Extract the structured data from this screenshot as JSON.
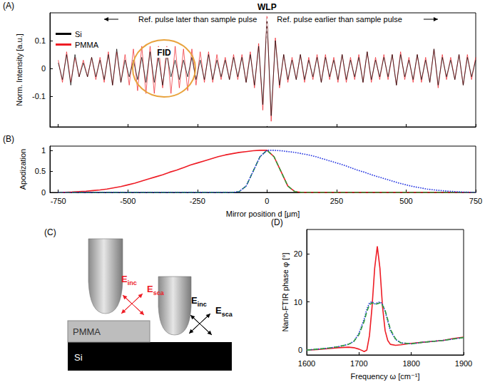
{
  "chart_data": [
    {
      "type": "line",
      "title": "(A)",
      "x": [
        -750,
        -735,
        -720,
        -705,
        -690,
        -675,
        -660,
        -645,
        -630,
        -615,
        -600,
        -585,
        -570,
        -555,
        -540,
        -525,
        -510,
        -495,
        -480,
        -465,
        -450,
        -435,
        -420,
        -405,
        -390,
        -375,
        -360,
        -345,
        -330,
        -315,
        -300,
        -285,
        -270,
        -255,
        -240,
        -225,
        -210,
        -195,
        -180,
        -165,
        -150,
        -135,
        -120,
        -105,
        -90,
        -75,
        -60,
        -45,
        -30,
        -15,
        0,
        15,
        30,
        45,
        60,
        75,
        90,
        105,
        120,
        135,
        150,
        165,
        180,
        195,
        210,
        225,
        240,
        255,
        270,
        285,
        300,
        315,
        330,
        345,
        360,
        375,
        390,
        405,
        420,
        435,
        450,
        465,
        480,
        495,
        510,
        525,
        540,
        555,
        570,
        585,
        600,
        615,
        630,
        645,
        660,
        675,
        690,
        705,
        720,
        735,
        750
      ],
      "series": [
        {
          "name": "Si",
          "color": "#000000",
          "line_style": "solid",
          "values": [
            0.02,
            -0.04,
            0.05,
            -0.06,
            0.05,
            -0.03,
            0.02,
            -0.03,
            0.04,
            -0.03,
            0.03,
            -0.04,
            0.05,
            -0.06,
            0.07,
            -0.05,
            0.03,
            -0.03,
            0.03,
            -0.04,
            0.04,
            -0.05,
            0.06,
            -0.05,
            0.04,
            -0.06,
            0.05,
            -0.03,
            0.03,
            -0.04,
            0.03,
            -0.03,
            0.04,
            -0.04,
            0.03,
            -0.04,
            0.05,
            -0.04,
            0.03,
            -0.03,
            0.03,
            -0.04,
            0.04,
            -0.03,
            0.04,
            -0.05,
            0.05,
            -0.06,
            0.08,
            -0.13,
            0.18,
            -0.17,
            0.1,
            -0.06,
            0.05,
            -0.04,
            0.03,
            -0.04,
            0.05,
            -0.04,
            0.03,
            -0.03,
            0.04,
            -0.05,
            0.04,
            -0.03,
            0.03,
            -0.04,
            0.05,
            -0.04,
            0.03,
            -0.03,
            0.04,
            -0.05,
            0.06,
            -0.04,
            0.03,
            -0.03,
            0.04,
            -0.03,
            0.05,
            -0.06,
            0.05,
            -0.03,
            0.03,
            -0.04,
            0.05,
            -0.04,
            0.03,
            -0.05,
            0.07,
            -0.06,
            0.04,
            -0.03,
            0.03,
            -0.04,
            0.05,
            -0.06,
            0.04,
            -0.03,
            0.03
          ]
        },
        {
          "name": "PMMA",
          "color": "#ee1c25",
          "line_style": "solid",
          "values": [
            0.03,
            -0.05,
            0.06,
            -0.05,
            0.04,
            -0.03,
            0.03,
            -0.03,
            0.04,
            -0.04,
            0.04,
            -0.05,
            0.06,
            -0.06,
            0.06,
            -0.05,
            0.05,
            -0.06,
            0.07,
            -0.08,
            0.08,
            -0.09,
            0.08,
            -0.09,
            0.08,
            -0.07,
            0.08,
            -0.09,
            0.08,
            -0.07,
            0.07,
            -0.08,
            0.07,
            -0.06,
            0.06,
            -0.05,
            0.06,
            -0.05,
            0.05,
            -0.04,
            0.04,
            -0.04,
            0.05,
            -0.04,
            0.05,
            -0.05,
            0.06,
            -0.07,
            0.09,
            -0.15,
            0.19,
            -0.19,
            0.11,
            -0.07,
            0.05,
            -0.05,
            0.04,
            -0.04,
            0.05,
            -0.05,
            0.04,
            -0.04,
            0.05,
            -0.05,
            0.05,
            -0.04,
            0.04,
            -0.05,
            0.05,
            -0.05,
            0.04,
            -0.04,
            0.05,
            -0.05,
            0.06,
            -0.05,
            0.04,
            -0.04,
            0.05,
            -0.04,
            0.05,
            -0.06,
            0.06,
            -0.04,
            0.04,
            -0.05,
            0.05,
            -0.05,
            0.04,
            -0.05,
            0.07,
            -0.07,
            0.05,
            -0.04,
            0.04,
            -0.04,
            0.05,
            -0.06,
            0.05,
            -0.04,
            0.04
          ]
        }
      ],
      "xlim": [
        -780,
        750
      ],
      "xticks": [
        -750,
        -500,
        -250,
        0,
        250,
        500,
        750
      ],
      "ylim": [
        -0.21,
        0.2
      ],
      "yticks": [
        -0.1,
        0,
        0.1
      ],
      "ylabel": "Norm. Intensity [a.u.]",
      "tick_labels": "y",
      "grid": false,
      "legend": "upper left",
      "annotations": [
        "WLP",
        "Ref. pulse later than sample pulse",
        "Ref. pulse earlier than sample pulse",
        "FID"
      ]
    },
    {
      "type": "line",
      "title": "(B)",
      "x": [
        -750,
        -725,
        -700,
        -675,
        -650,
        -625,
        -600,
        -575,
        -550,
        -525,
        -500,
        -475,
        -450,
        -425,
        -400,
        -375,
        -350,
        -325,
        -300,
        -275,
        -250,
        -225,
        -200,
        -175,
        -150,
        -125,
        -100,
        -75,
        -50,
        -25,
        0,
        25,
        50,
        75,
        100,
        125,
        150,
        175,
        200,
        225,
        250,
        275,
        300,
        325,
        350,
        375,
        400,
        425,
        450,
        475,
        500,
        525,
        550,
        575,
        600,
        625,
        650,
        675,
        700,
        725,
        750
      ],
      "series": [
        {
          "color": "#ee1c25",
          "line_style": "solid",
          "values": [
            0,
            0.005,
            0.01,
            0.02,
            0.03,
            0.045,
            0.06,
            0.08,
            0.11,
            0.14,
            0.18,
            0.22,
            0.27,
            0.32,
            0.37,
            0.42,
            0.48,
            0.53,
            0.59,
            0.65,
            0.7,
            0.75,
            0.8,
            0.85,
            0.89,
            0.92,
            0.95,
            0.97,
            0.99,
            1,
            1,
            0.85,
            0.5,
            0.15,
            0.02,
            0,
            0,
            0,
            0,
            0,
            0,
            0,
            0,
            0,
            0,
            0,
            0,
            0,
            0,
            0,
            0,
            0,
            0,
            0,
            0,
            0,
            0,
            0,
            0,
            0,
            0
          ]
        },
        {
          "color": "#2e9e3c",
          "line_style": "dashed",
          "values": [
            0,
            0,
            0,
            0,
            0,
            0,
            0,
            0,
            0,
            0,
            0,
            0,
            0,
            0,
            0,
            0,
            0,
            0,
            0,
            0,
            0,
            0,
            0,
            0,
            0,
            0,
            0.02,
            0.15,
            0.5,
            0.85,
            1,
            0.85,
            0.5,
            0.15,
            0.02,
            0,
            0,
            0,
            0,
            0,
            0,
            0,
            0,
            0,
            0,
            0,
            0,
            0,
            0,
            0,
            0,
            0,
            0,
            0,
            0,
            0,
            0,
            0,
            0,
            0,
            0
          ]
        },
        {
          "color": "#1f30e0",
          "line_style": "dotted",
          "values": [
            0,
            0,
            0,
            0,
            0,
            0,
            0,
            0,
            0,
            0,
            0,
            0,
            0,
            0,
            0,
            0,
            0,
            0,
            0,
            0,
            0,
            0,
            0,
            0,
            0,
            0,
            0.02,
            0.15,
            0.5,
            0.85,
            1,
            1,
            0.99,
            0.97,
            0.95,
            0.92,
            0.89,
            0.85,
            0.8,
            0.75,
            0.7,
            0.65,
            0.59,
            0.53,
            0.48,
            0.42,
            0.37,
            0.32,
            0.27,
            0.22,
            0.18,
            0.14,
            0.11,
            0.08,
            0.06,
            0.045,
            0.03,
            0.02,
            0.01,
            0.005,
            0
          ]
        }
      ],
      "xlim": [
        -780,
        750
      ],
      "xticks": [
        -750,
        -500,
        -250,
        0,
        250,
        500,
        750
      ],
      "ylim": [
        0,
        1.1
      ],
      "yticks": [
        0,
        0.5,
        1
      ],
      "xlabel": "Mirror position d [μm]",
      "ylabel": "Apodization",
      "grid": false
    },
    {
      "type": "line",
      "title": "(D)",
      "x": [
        1600,
        1620,
        1640,
        1660,
        1680,
        1690,
        1700,
        1710,
        1715,
        1720,
        1725,
        1730,
        1735,
        1740,
        1745,
        1750,
        1755,
        1760,
        1770,
        1780,
        1800,
        1820,
        1840,
        1860,
        1880,
        1900
      ],
      "series": [
        {
          "color": "#ee1c25",
          "line_style": "solid",
          "values": [
            0,
            0.1,
            0.3,
            0.5,
            0.6,
            0.5,
            0.2,
            -0.3,
            0,
            3,
            9,
            17,
            21.5,
            17,
            9,
            4,
            2,
            1.2,
            1,
            1.1,
            1.4,
            1.6,
            1.8,
            2,
            2.4,
            2.7
          ]
        },
        {
          "color": "#1f30e0",
          "line_style": "dotted",
          "values": [
            0,
            0.2,
            0.4,
            0.7,
            1.2,
            1.8,
            3.5,
            6.5,
            8.5,
            9.8,
            10,
            9.6,
            9.8,
            10,
            9.5,
            8,
            6,
            4,
            2.2,
            1.5,
            1.3,
            1.6,
            1.8,
            2,
            2.3,
            2.6
          ]
        },
        {
          "color": "#2e9e3c",
          "line_style": "dashed",
          "values": [
            0,
            0.2,
            0.4,
            0.7,
            1.2,
            1.8,
            3.2,
            6,
            8,
            9.4,
            9.8,
            9.5,
            9.6,
            9.8,
            9.3,
            8.2,
            6.3,
            4.3,
            2.3,
            1.5,
            1.3,
            1.6,
            1.8,
            2,
            2.3,
            2.6
          ]
        }
      ],
      "xlim": [
        1600,
        1900
      ],
      "xticks": [
        1600,
        1700,
        1800,
        1900
      ],
      "ylim": [
        -1,
        25
      ],
      "yticks": [
        0,
        10,
        20
      ],
      "xlabel": "Frequency ω [cm⁻¹]",
      "ylabel": "Nano-FTIR phase φ [°]",
      "grid": false
    }
  ],
  "diagram": {
    "title": "(C)",
    "film": "PMMA",
    "substrate": "Si",
    "field_labels": [
      {
        "symbol": "E",
        "subscript": "inc"
      },
      {
        "symbol": "E",
        "subscript": "sca"
      }
    ]
  }
}
